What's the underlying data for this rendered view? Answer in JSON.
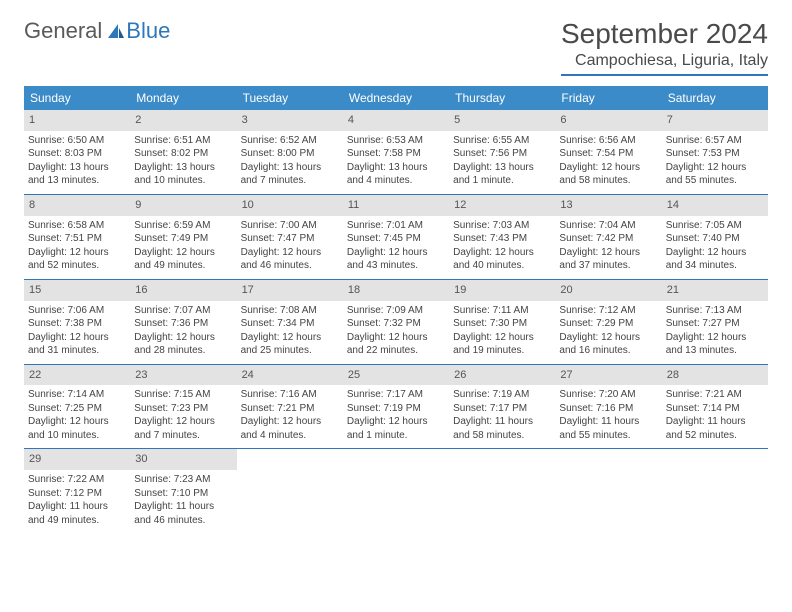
{
  "logo": {
    "word1": "General",
    "word2": "Blue"
  },
  "title": "September 2024",
  "location": "Campochiesa, Liguria, Italy",
  "colors": {
    "header_bg": "#3b8bc9",
    "rule": "#2f77b9",
    "daynum_bg": "#e3e3e3",
    "text": "#444444"
  },
  "weekdays": [
    "Sunday",
    "Monday",
    "Tuesday",
    "Wednesday",
    "Thursday",
    "Friday",
    "Saturday"
  ],
  "weeks": [
    [
      {
        "n": "1",
        "sr": "Sunrise: 6:50 AM",
        "ss": "Sunset: 8:03 PM",
        "d1": "Daylight: 13 hours",
        "d2": "and 13 minutes."
      },
      {
        "n": "2",
        "sr": "Sunrise: 6:51 AM",
        "ss": "Sunset: 8:02 PM",
        "d1": "Daylight: 13 hours",
        "d2": "and 10 minutes."
      },
      {
        "n": "3",
        "sr": "Sunrise: 6:52 AM",
        "ss": "Sunset: 8:00 PM",
        "d1": "Daylight: 13 hours",
        "d2": "and 7 minutes."
      },
      {
        "n": "4",
        "sr": "Sunrise: 6:53 AM",
        "ss": "Sunset: 7:58 PM",
        "d1": "Daylight: 13 hours",
        "d2": "and 4 minutes."
      },
      {
        "n": "5",
        "sr": "Sunrise: 6:55 AM",
        "ss": "Sunset: 7:56 PM",
        "d1": "Daylight: 13 hours",
        "d2": "and 1 minute."
      },
      {
        "n": "6",
        "sr": "Sunrise: 6:56 AM",
        "ss": "Sunset: 7:54 PM",
        "d1": "Daylight: 12 hours",
        "d2": "and 58 minutes."
      },
      {
        "n": "7",
        "sr": "Sunrise: 6:57 AM",
        "ss": "Sunset: 7:53 PM",
        "d1": "Daylight: 12 hours",
        "d2": "and 55 minutes."
      }
    ],
    [
      {
        "n": "8",
        "sr": "Sunrise: 6:58 AM",
        "ss": "Sunset: 7:51 PM",
        "d1": "Daylight: 12 hours",
        "d2": "and 52 minutes."
      },
      {
        "n": "9",
        "sr": "Sunrise: 6:59 AM",
        "ss": "Sunset: 7:49 PM",
        "d1": "Daylight: 12 hours",
        "d2": "and 49 minutes."
      },
      {
        "n": "10",
        "sr": "Sunrise: 7:00 AM",
        "ss": "Sunset: 7:47 PM",
        "d1": "Daylight: 12 hours",
        "d2": "and 46 minutes."
      },
      {
        "n": "11",
        "sr": "Sunrise: 7:01 AM",
        "ss": "Sunset: 7:45 PM",
        "d1": "Daylight: 12 hours",
        "d2": "and 43 minutes."
      },
      {
        "n": "12",
        "sr": "Sunrise: 7:03 AM",
        "ss": "Sunset: 7:43 PM",
        "d1": "Daylight: 12 hours",
        "d2": "and 40 minutes."
      },
      {
        "n": "13",
        "sr": "Sunrise: 7:04 AM",
        "ss": "Sunset: 7:42 PM",
        "d1": "Daylight: 12 hours",
        "d2": "and 37 minutes."
      },
      {
        "n": "14",
        "sr": "Sunrise: 7:05 AM",
        "ss": "Sunset: 7:40 PM",
        "d1": "Daylight: 12 hours",
        "d2": "and 34 minutes."
      }
    ],
    [
      {
        "n": "15",
        "sr": "Sunrise: 7:06 AM",
        "ss": "Sunset: 7:38 PM",
        "d1": "Daylight: 12 hours",
        "d2": "and 31 minutes."
      },
      {
        "n": "16",
        "sr": "Sunrise: 7:07 AM",
        "ss": "Sunset: 7:36 PM",
        "d1": "Daylight: 12 hours",
        "d2": "and 28 minutes."
      },
      {
        "n": "17",
        "sr": "Sunrise: 7:08 AM",
        "ss": "Sunset: 7:34 PM",
        "d1": "Daylight: 12 hours",
        "d2": "and 25 minutes."
      },
      {
        "n": "18",
        "sr": "Sunrise: 7:09 AM",
        "ss": "Sunset: 7:32 PM",
        "d1": "Daylight: 12 hours",
        "d2": "and 22 minutes."
      },
      {
        "n": "19",
        "sr": "Sunrise: 7:11 AM",
        "ss": "Sunset: 7:30 PM",
        "d1": "Daylight: 12 hours",
        "d2": "and 19 minutes."
      },
      {
        "n": "20",
        "sr": "Sunrise: 7:12 AM",
        "ss": "Sunset: 7:29 PM",
        "d1": "Daylight: 12 hours",
        "d2": "and 16 minutes."
      },
      {
        "n": "21",
        "sr": "Sunrise: 7:13 AM",
        "ss": "Sunset: 7:27 PM",
        "d1": "Daylight: 12 hours",
        "d2": "and 13 minutes."
      }
    ],
    [
      {
        "n": "22",
        "sr": "Sunrise: 7:14 AM",
        "ss": "Sunset: 7:25 PM",
        "d1": "Daylight: 12 hours",
        "d2": "and 10 minutes."
      },
      {
        "n": "23",
        "sr": "Sunrise: 7:15 AM",
        "ss": "Sunset: 7:23 PM",
        "d1": "Daylight: 12 hours",
        "d2": "and 7 minutes."
      },
      {
        "n": "24",
        "sr": "Sunrise: 7:16 AM",
        "ss": "Sunset: 7:21 PM",
        "d1": "Daylight: 12 hours",
        "d2": "and 4 minutes."
      },
      {
        "n": "25",
        "sr": "Sunrise: 7:17 AM",
        "ss": "Sunset: 7:19 PM",
        "d1": "Daylight: 12 hours",
        "d2": "and 1 minute."
      },
      {
        "n": "26",
        "sr": "Sunrise: 7:19 AM",
        "ss": "Sunset: 7:17 PM",
        "d1": "Daylight: 11 hours",
        "d2": "and 58 minutes."
      },
      {
        "n": "27",
        "sr": "Sunrise: 7:20 AM",
        "ss": "Sunset: 7:16 PM",
        "d1": "Daylight: 11 hours",
        "d2": "and 55 minutes."
      },
      {
        "n": "28",
        "sr": "Sunrise: 7:21 AM",
        "ss": "Sunset: 7:14 PM",
        "d1": "Daylight: 11 hours",
        "d2": "and 52 minutes."
      }
    ],
    [
      {
        "n": "29",
        "sr": "Sunrise: 7:22 AM",
        "ss": "Sunset: 7:12 PM",
        "d1": "Daylight: 11 hours",
        "d2": "and 49 minutes."
      },
      {
        "n": "30",
        "sr": "Sunrise: 7:23 AM",
        "ss": "Sunset: 7:10 PM",
        "d1": "Daylight: 11 hours",
        "d2": "and 46 minutes."
      },
      null,
      null,
      null,
      null,
      null
    ]
  ]
}
